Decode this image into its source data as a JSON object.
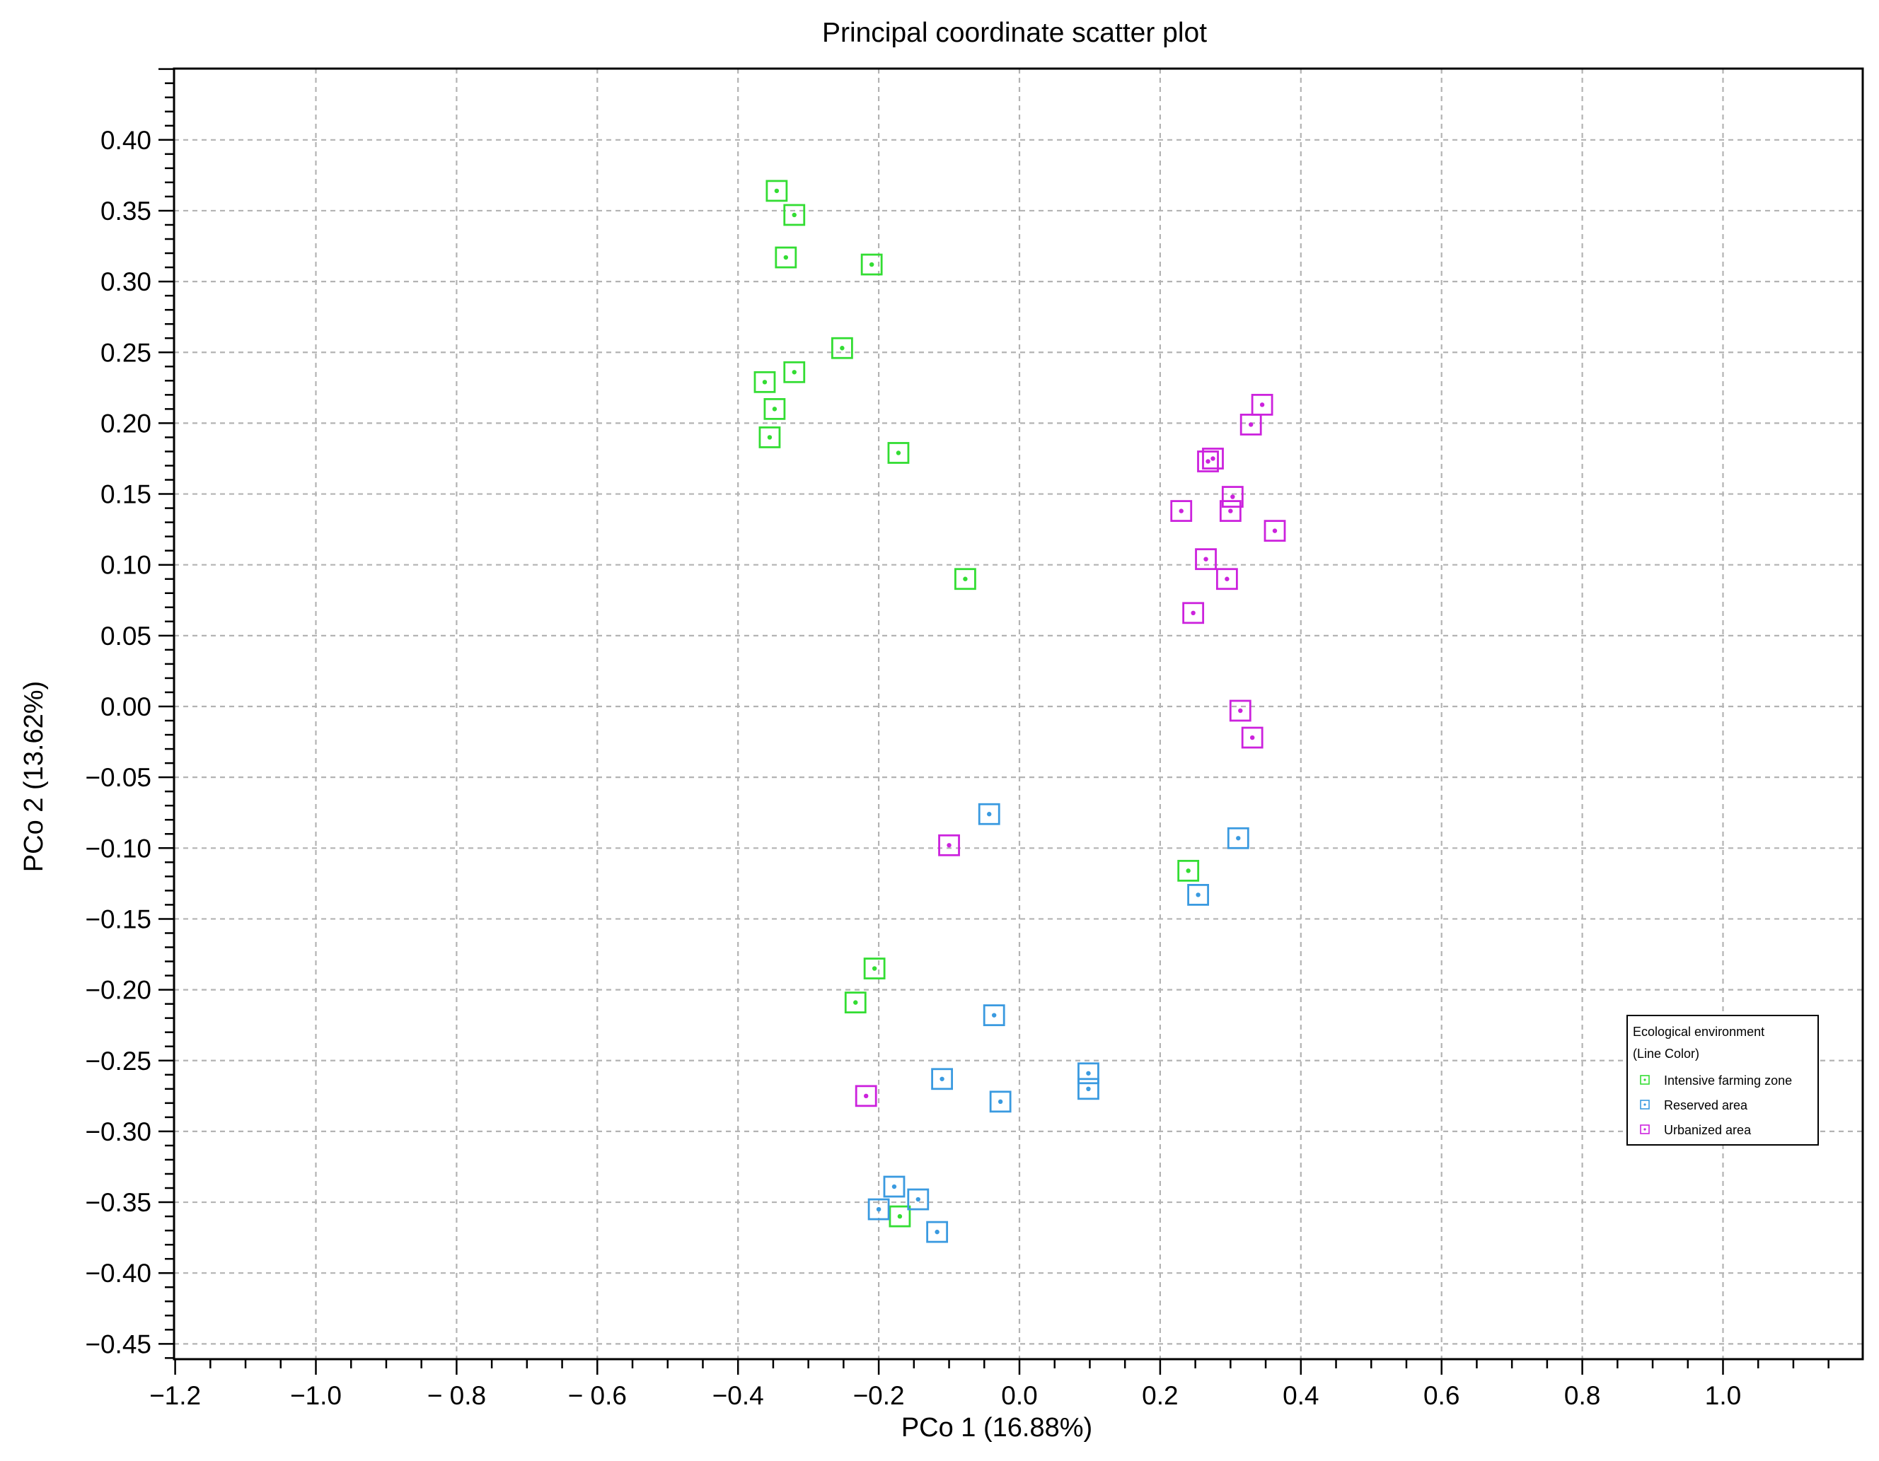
{
  "chart_data": {
    "type": "scatter",
    "title": "Principal coordinate scatter plot",
    "xlabel": "PCo 1 (16.88%)",
    "ylabel": "PCo 2 (13.62%)",
    "xlim": [
      -1.2,
      1.2
    ],
    "ylim": [
      -0.46,
      0.45
    ],
    "grid": true,
    "legend_position": "lower-right",
    "x_ticks": [
      -1.2,
      -1.0,
      -0.8,
      -0.6,
      -0.4,
      -0.2,
      0.0,
      0.2,
      0.4,
      0.6,
      0.8,
      1.0
    ],
    "x_tick_labels": [
      "−1.2",
      "−1.0",
      "− 0.8",
      "− 0.6",
      "−0.4",
      "−0.2",
      "0.0",
      "0.2",
      "0.4",
      "0.6",
      "0.8",
      "1.0"
    ],
    "y_ticks": [
      0.4,
      0.35,
      0.3,
      0.25,
      0.2,
      0.15,
      0.1,
      0.05,
      0.0,
      -0.05,
      -0.1,
      -0.15,
      -0.2,
      -0.25,
      -0.3,
      -0.35,
      -0.4,
      -0.45
    ],
    "y_tick_labels": [
      "0.40",
      "0.35",
      "0.30",
      "0.25",
      "0.20",
      "0.15",
      "0.10",
      "0.05",
      "0.00",
      "−0.05",
      "−0.10",
      "−0.15",
      "−0.20",
      "−0.25",
      "−0.30",
      "−0.35",
      "−0.40",
      "−0.45"
    ],
    "legend": {
      "title_line1": "Ecological environment",
      "title_line2": "(Line Color)"
    },
    "series": [
      {
        "name": "Intensive farming zone",
        "color": "#33dd33",
        "marker": "square-with-dot",
        "points": [
          [
            -0.345,
            0.364
          ],
          [
            -0.32,
            0.347
          ],
          [
            -0.332,
            0.317
          ],
          [
            -0.21,
            0.312
          ],
          [
            -0.252,
            0.253
          ],
          [
            -0.362,
            0.229
          ],
          [
            -0.32,
            0.236
          ],
          [
            -0.348,
            0.21
          ],
          [
            -0.355,
            0.19
          ],
          [
            -0.172,
            0.179
          ],
          [
            -0.077,
            0.09
          ],
          [
            0.24,
            -0.116
          ],
          [
            -0.206,
            -0.185
          ],
          [
            -0.233,
            -0.209
          ],
          [
            -0.17,
            -0.36
          ]
        ]
      },
      {
        "name": "Reserved area",
        "color": "#3a9ae0",
        "marker": "square-with-dot",
        "points": [
          [
            -0.043,
            -0.076
          ],
          [
            0.311,
            -0.093
          ],
          [
            0.254,
            -0.133
          ],
          [
            -0.036,
            -0.218
          ],
          [
            -0.11,
            -0.263
          ],
          [
            0.098,
            -0.259
          ],
          [
            0.098,
            -0.27
          ],
          [
            -0.027,
            -0.279
          ],
          [
            -0.178,
            -0.339
          ],
          [
            -0.144,
            -0.348
          ],
          [
            -0.2,
            -0.355
          ],
          [
            -0.117,
            -0.371
          ]
        ]
      },
      {
        "name": "Urbanized area",
        "color": "#cc22dd",
        "marker": "square-with-dot",
        "points": [
          [
            0.345,
            0.213
          ],
          [
            0.329,
            0.199
          ],
          [
            0.275,
            0.175
          ],
          [
            0.268,
            0.173
          ],
          [
            0.303,
            0.148
          ],
          [
            0.3,
            0.138
          ],
          [
            0.23,
            0.138
          ],
          [
            0.363,
            0.124
          ],
          [
            0.265,
            0.104
          ],
          [
            0.295,
            0.09
          ],
          [
            0.247,
            0.066
          ],
          [
            0.314,
            -0.003
          ],
          [
            0.331,
            -0.022
          ],
          [
            -0.1,
            -0.098
          ],
          [
            -0.218,
            -0.275
          ]
        ]
      }
    ]
  }
}
